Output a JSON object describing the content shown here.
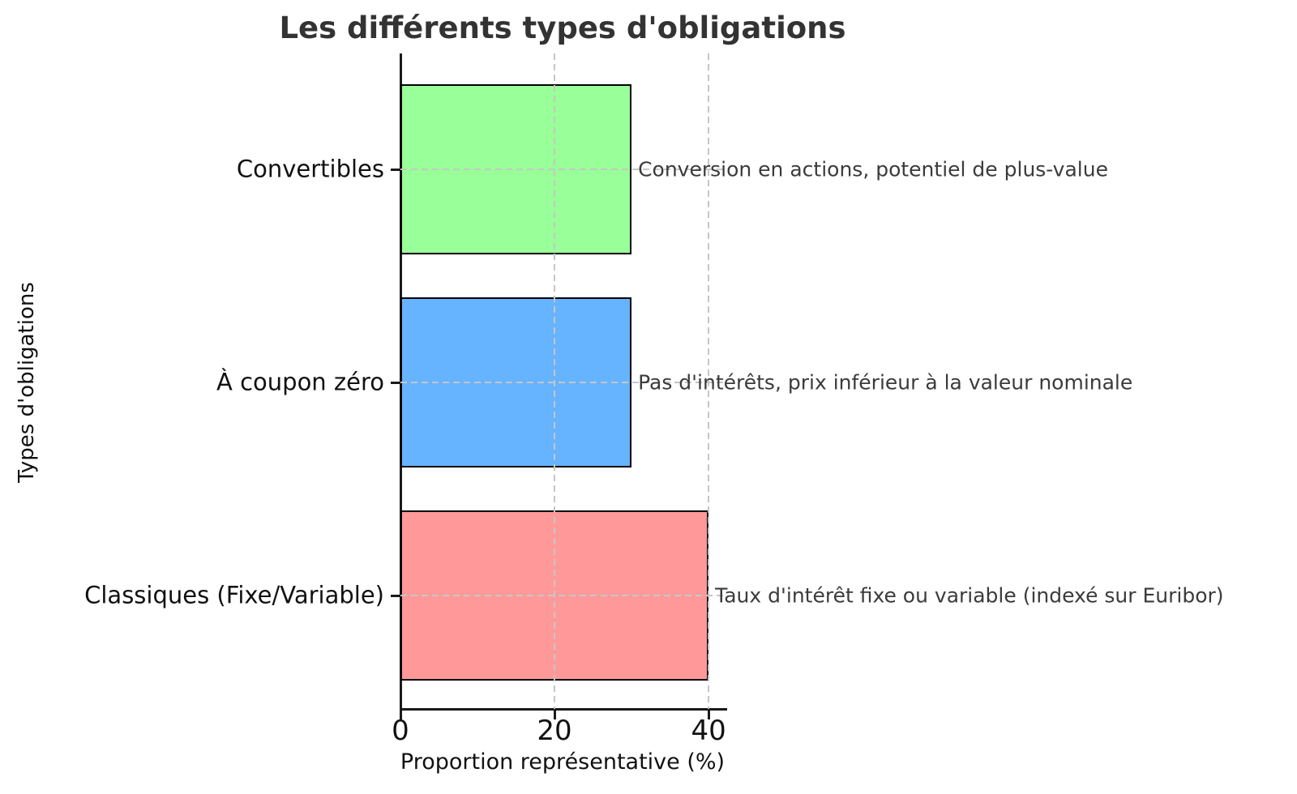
{
  "chart_data": {
    "type": "bar",
    "orientation": "horizontal",
    "title": "Les différents types d'obligations",
    "xlabel": "Proportion représentative (%)",
    "ylabel": "Types d'obligations",
    "xlim": [
      0,
      42.2
    ],
    "xticks": [
      0,
      20,
      40
    ],
    "grid": true,
    "legend": "none",
    "categories": [
      "Convertibles",
      "À coupon zéro",
      "Classiques (Fixe/Variable)"
    ],
    "values": [
      30,
      30,
      40
    ],
    "bar_colors": [
      "#99ff99",
      "#66b3ff",
      "#ff9999"
    ],
    "bar_edge_color": "#000000",
    "annotations": [
      "Conversion en actions, potentiel de plus-value",
      "Pas d'intérêts, prix inférieur à la valeur nominale",
      "Taux d'intérêt fixe ou variable (indexé sur Euribor)"
    ]
  }
}
